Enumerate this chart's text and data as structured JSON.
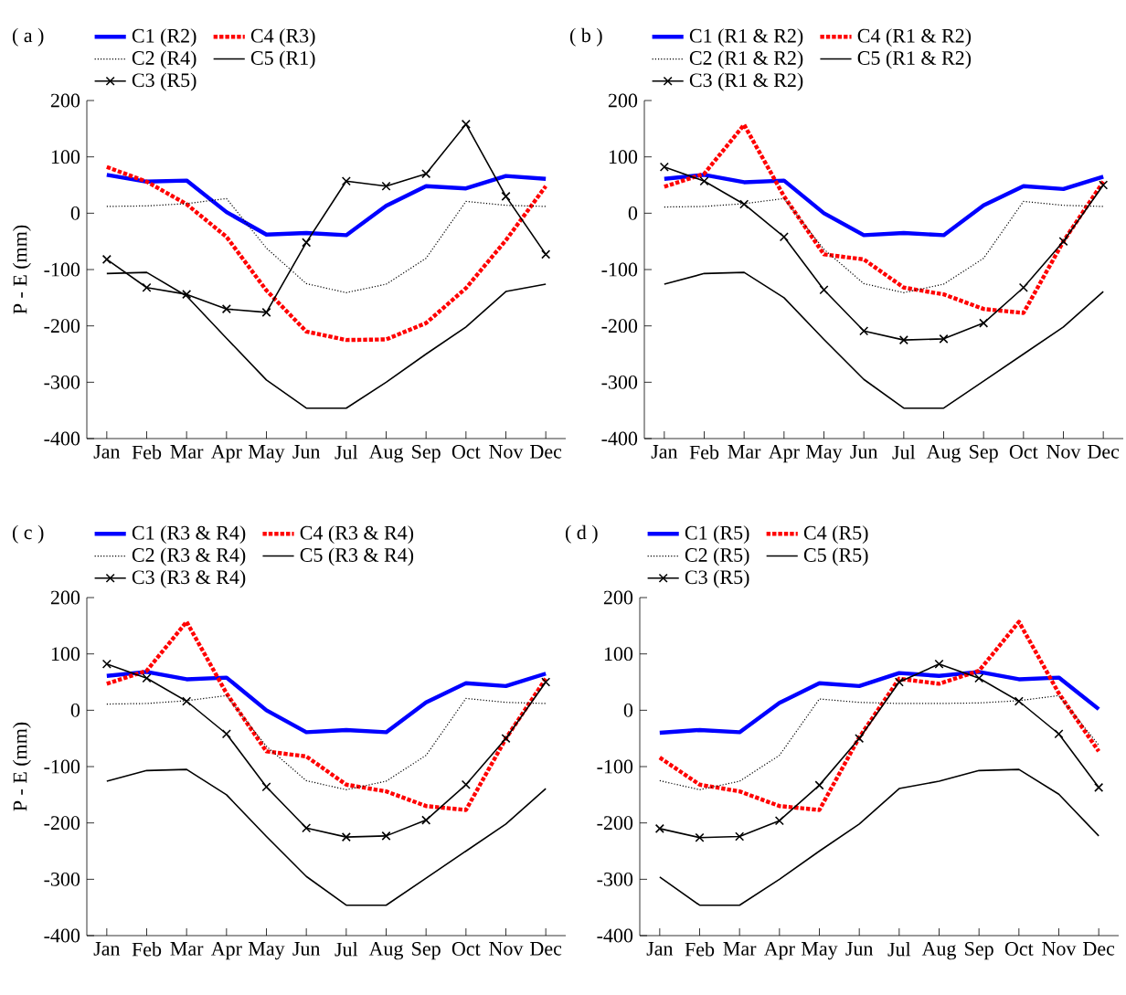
{
  "chart_data": [
    {
      "type": "line",
      "title": "( a )",
      "ylabel": "P - E (mm)",
      "categories": [
        "Jan",
        "Feb",
        "Mar",
        "Apr",
        "May",
        "Jun",
        "Jul",
        "Aug",
        "Sep",
        "Oct",
        "Nov",
        "Dec"
      ],
      "ylim": [
        -400,
        200
      ],
      "yticks": [
        -400,
        -300,
        -200,
        -100,
        0,
        100,
        200
      ],
      "legend": "top left",
      "series": [
        {
          "name": "C1 (R2)",
          "color": "#0000ff",
          "line_style": "solid",
          "values": [
            68,
            56,
            58,
            2,
            -38,
            -35,
            -39,
            13,
            48,
            44,
            66,
            61
          ]
        },
        {
          "name": "C4 (R3)",
          "color": "#ff0000",
          "line_style": "dotted",
          "values": [
            82,
            56,
            16,
            -42,
            -137,
            -210,
            -225,
            -224,
            -195,
            -133,
            -48,
            48
          ]
        },
        {
          "name": "C2 (R4)",
          "color": "#000000",
          "line_style": "dotted",
          "values": [
            12,
            13,
            17,
            26,
            -62,
            -125,
            -141,
            -126,
            -80,
            21,
            14,
            12
          ]
        },
        {
          "name": "C5 (R1)",
          "color": "#000000",
          "line_style": "solid",
          "values": [
            -107,
            -105,
            -147,
            -222,
            -296,
            -346,
            -346,
            -300,
            -250,
            -202,
            -139,
            -126
          ]
        },
        {
          "name": "C3 (R5)",
          "color": "#000000",
          "line_style": "solid",
          "marker": "cross",
          "values": [
            -82,
            -132,
            -144,
            -170,
            -176,
            -52,
            57,
            48,
            70,
            158,
            30,
            -73
          ]
        }
      ]
    },
    {
      "type": "line",
      "title": "( b )",
      "categories": [
        "Jan",
        "Feb",
        "Mar",
        "Apr",
        "May",
        "Jun",
        "Jul",
        "Aug",
        "Sep",
        "Oct",
        "Nov",
        "Dec"
      ],
      "ylim": [
        -400,
        200
      ],
      "yticks": [
        -400,
        -300,
        -200,
        -100,
        0,
        100,
        200
      ],
      "legend": "top left",
      "series": [
        {
          "name": "C1 (R1 & R2)",
          "color": "#0000ff",
          "line_style": "solid",
          "values": [
            61,
            68,
            55,
            58,
            0,
            -39,
            -35,
            -39,
            14,
            48,
            43,
            65
          ]
        },
        {
          "name": "C4 (R1 & R2)",
          "color": "#ff0000",
          "line_style": "dotted",
          "values": [
            47,
            70,
            157,
            30,
            -73,
            -82,
            -132,
            -144,
            -170,
            -177,
            -50,
            56
          ]
        },
        {
          "name": "C2 (R1 & R2)",
          "color": "#000000",
          "line_style": "dotted",
          "values": [
            11,
            12,
            17,
            26,
            -64,
            -125,
            -141,
            -126,
            -80,
            21,
            14,
            12
          ]
        },
        {
          "name": "C5 (R1 & R2)",
          "color": "#000000",
          "line_style": "solid",
          "values": [
            -126,
            -107,
            -105,
            -150,
            -224,
            -295,
            -346,
            -346,
            -298,
            -250,
            -202,
            -139
          ]
        },
        {
          "name": "C3 (R1 & R2)",
          "color": "#000000",
          "line_style": "solid",
          "marker": "cross",
          "values": [
            82,
            57,
            16,
            -42,
            -136,
            -209,
            -225,
            -223,
            -195,
            -132,
            -50,
            50
          ]
        }
      ]
    },
    {
      "type": "line",
      "title": "( c )",
      "ylabel": "P - E (mm)",
      "categories": [
        "Jan",
        "Feb",
        "Mar",
        "Apr",
        "May",
        "Jun",
        "Jul",
        "Aug",
        "Sep",
        "Oct",
        "Nov",
        "Dec"
      ],
      "ylim": [
        -400,
        200
      ],
      "yticks": [
        -400,
        -300,
        -200,
        -100,
        0,
        100,
        200
      ],
      "legend": "top left",
      "series": [
        {
          "name": "C1 (R3 & R4)",
          "color": "#0000ff",
          "line_style": "solid",
          "values": [
            61,
            68,
            55,
            58,
            0,
            -39,
            -35,
            -39,
            14,
            48,
            43,
            65
          ]
        },
        {
          "name": "C4 (R3 & R4)",
          "color": "#ff0000",
          "line_style": "dotted",
          "values": [
            47,
            70,
            157,
            30,
            -73,
            -82,
            -132,
            -144,
            -170,
            -177,
            -50,
            56
          ]
        },
        {
          "name": "C2 (R3 & R4)",
          "color": "#000000",
          "line_style": "dotted",
          "values": [
            11,
            12,
            17,
            26,
            -64,
            -125,
            -141,
            -126,
            -80,
            21,
            14,
            12
          ]
        },
        {
          "name": "C5 (R3 & R4)",
          "color": "#000000",
          "line_style": "solid",
          "values": [
            -126,
            -107,
            -105,
            -150,
            -224,
            -295,
            -346,
            -346,
            -298,
            -250,
            -202,
            -139
          ]
        },
        {
          "name": "C3 (R3 & R4)",
          "color": "#000000",
          "line_style": "solid",
          "marker": "cross",
          "values": [
            82,
            57,
            16,
            -42,
            -136,
            -209,
            -225,
            -223,
            -195,
            -132,
            -50,
            50
          ]
        }
      ]
    },
    {
      "type": "line",
      "title": "( d )",
      "categories": [
        "Jan",
        "Feb",
        "Mar",
        "Apr",
        "May",
        "Jun",
        "Jul",
        "Aug",
        "Sep",
        "Oct",
        "Nov",
        "Dec"
      ],
      "ylim": [
        -400,
        200
      ],
      "yticks": [
        -400,
        -300,
        -200,
        -100,
        0,
        100,
        200
      ],
      "legend": "top left",
      "series": [
        {
          "name": "C1 (R5)",
          "color": "#0000ff",
          "line_style": "solid",
          "values": [
            -40,
            -35,
            -39,
            13,
            48,
            43,
            66,
            61,
            68,
            55,
            58,
            2
          ]
        },
        {
          "name": "C4 (R5)",
          "color": "#ff0000",
          "line_style": "dotted",
          "values": [
            -84,
            -132,
            -144,
            -170,
            -177,
            -48,
            56,
            47,
            70,
            157,
            30,
            -73
          ]
        },
        {
          "name": "C2 (R5)",
          "color": "#000000",
          "line_style": "dotted",
          "values": [
            -125,
            -141,
            -126,
            -80,
            20,
            14,
            12,
            12,
            13,
            17,
            26,
            -62
          ]
        },
        {
          "name": "C5 (R5)",
          "color": "#000000",
          "line_style": "solid",
          "values": [
            -296,
            -346,
            -346,
            -300,
            -250,
            -202,
            -139,
            -126,
            -107,
            -105,
            -149,
            -223
          ]
        },
        {
          "name": "C3 (R5)",
          "color": "#000000",
          "line_style": "solid",
          "marker": "cross",
          "values": [
            -210,
            -226,
            -224,
            -196,
            -133,
            -50,
            50,
            82,
            57,
            16,
            -42,
            -137
          ]
        }
      ]
    }
  ]
}
